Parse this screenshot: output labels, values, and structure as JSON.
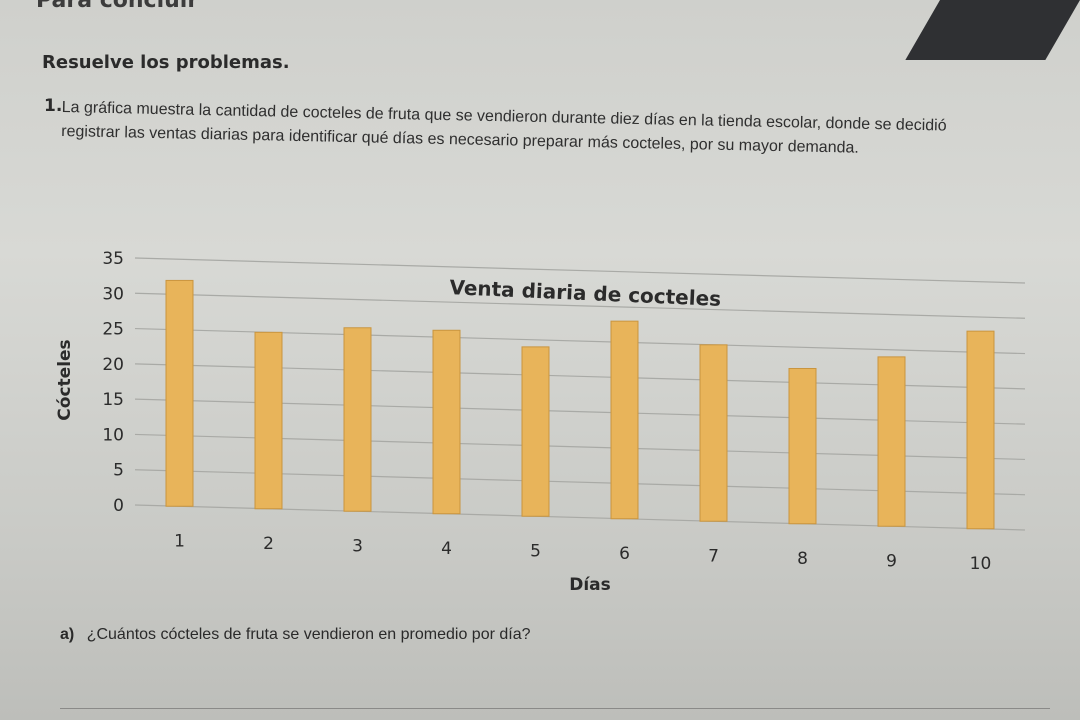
{
  "section_tag": "Para concluir",
  "heading": "Resuelve los problemas.",
  "problem": {
    "number": "1.",
    "text": "La gráfica muestra la cantidad de cocteles de fruta que se vendieron durante diez días en la tienda escolar, donde se decidió registrar las ventas diarias para identificar qué días es necesario preparar más cocteles, por su mayor demanda."
  },
  "question": {
    "letter": "a)",
    "text": "¿Cuántos cócteles de fruta se vendieron en promedio por día?"
  },
  "colors": {
    "bar": "#e8b45a",
    "bar_edge": "#c9953f",
    "grid": "#a9aaa6",
    "text": "#2b2b2b"
  },
  "chart_data": {
    "type": "bar",
    "title": "Venta diaria de cocteles",
    "xlabel": "Días",
    "ylabel": "Cócteles",
    "categories": [
      "1",
      "2",
      "3",
      "4",
      "5",
      "6",
      "7",
      "8",
      "9",
      "10"
    ],
    "values": [
      32,
      25,
      26,
      26,
      24,
      28,
      25,
      22,
      24,
      28
    ],
    "ylim": [
      0,
      35
    ],
    "yticks": [
      "0",
      "5",
      "10",
      "15",
      "20",
      "25",
      "30",
      "35"
    ],
    "grid": true
  }
}
